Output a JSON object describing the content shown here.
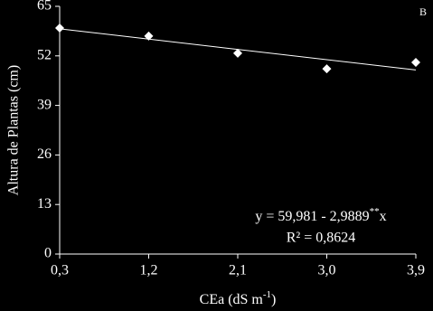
{
  "chart_data": {
    "type": "scatter",
    "panel_label": "B",
    "x_label": {
      "text": "CEa (dS m",
      "sup": "-1",
      "end": ")"
    },
    "y_label": "Altura de Plantas (cm)",
    "x": [
      0.3,
      1.2,
      2.1,
      3.0,
      3.9
    ],
    "series": [
      {
        "color": "#ffffff",
        "values": [
          59.3,
          57.2,
          52.7,
          48.6,
          50.3
        ]
      }
    ],
    "trendline": {
      "color": "#ffffff",
      "x": [
        0.3,
        3.9
      ],
      "values": [
        59.1,
        48.3
      ]
    },
    "annotations": {
      "equation": "y = 59,981 - 2,9889",
      "equation_sup": "**",
      "equation_end": "x",
      "r2": "R² = 0,8624"
    },
    "xlim": [
      0.3,
      3.9
    ],
    "xticks": [
      {
        "value": 0.3,
        "label": "0,3"
      },
      {
        "value": 1.2,
        "label": "1,2"
      },
      {
        "value": 2.1,
        "label": "2,1"
      },
      {
        "value": 3.0,
        "label": "3,0"
      },
      {
        "value": 3.9,
        "label": "3,9"
      }
    ],
    "ylim": [
      0,
      65
    ],
    "yticks": [
      0,
      13,
      26,
      39,
      52,
      65
    ]
  }
}
